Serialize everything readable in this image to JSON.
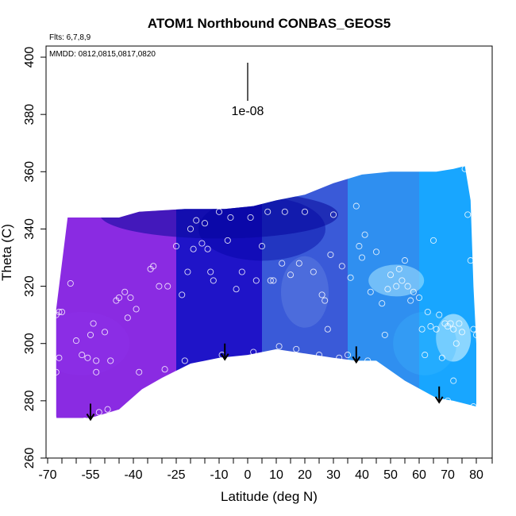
{
  "chart_data": {
    "type": "heatmap",
    "title": "ATOM1 Northbound CONBAS_GEOS5",
    "flights_note": "Flts: 6,7,8,9",
    "dates_note": "MMDD: 0812,0815,0817,0820",
    "xlabel": "Latitude (deg N)",
    "ylabel": "Theta (C)",
    "xlim": [
      -70,
      80
    ],
    "ylim": [
      260,
      400
    ],
    "x_ticks": [
      -70,
      -55,
      -40,
      -25,
      -10,
      0,
      10,
      20,
      30,
      40,
      50,
      60,
      70,
      80
    ],
    "x_tick_labels": [
      "-70",
      "-55",
      "-40",
      "-25",
      "-10",
      "0",
      "10",
      "20",
      "30",
      "40",
      "50",
      "60",
      "70",
      "80"
    ],
    "x_minor_ticks": [
      -65,
      -60,
      -50,
      -45,
      -35,
      -30,
      -20,
      -15,
      -5,
      5,
      15,
      25,
      35,
      45,
      55,
      65,
      75
    ],
    "y_ticks": [
      260,
      280,
      300,
      320,
      340,
      360,
      380,
      400
    ],
    "y_tick_labels": [
      "260",
      "280",
      "300",
      "320",
      "340",
      "360",
      "380",
      "400"
    ],
    "scale_bar_label": "1e-08",
    "grid": false,
    "field_top": [
      [
        -67,
        312
      ],
      [
        -63,
        344
      ],
      [
        -45,
        344
      ],
      [
        -38,
        346
      ],
      [
        -22,
        347
      ],
      [
        -8,
        347
      ],
      [
        2,
        348
      ],
      [
        10,
        350
      ],
      [
        20,
        352
      ],
      [
        30,
        356
      ],
      [
        40,
        359
      ],
      [
        50,
        360
      ],
      [
        60,
        360
      ],
      [
        66,
        360
      ],
      [
        72,
        361
      ],
      [
        76,
        362
      ],
      [
        78,
        350
      ],
      [
        79,
        320
      ],
      [
        80,
        300
      ]
    ],
    "field_bottom": [
      [
        80,
        278
      ],
      [
        72,
        280
      ],
      [
        66,
        281
      ],
      [
        55,
        287
      ],
      [
        45,
        294
      ],
      [
        38,
        294
      ],
      [
        30,
        295
      ],
      [
        20,
        296.5
      ],
      [
        10,
        298
      ],
      [
        0,
        296
      ],
      [
        -10,
        295
      ],
      [
        -20,
        293
      ],
      [
        -30,
        288
      ],
      [
        -37,
        284
      ],
      [
        -45,
        277
      ],
      [
        -55,
        274
      ],
      [
        -67,
        274
      ]
    ],
    "field_color_regions": [
      {
        "name": "southern-high-latitudes",
        "x": [
          -70,
          -25
        ],
        "color": "#8a2be2"
      },
      {
        "name": "southern-subtropics",
        "x": [
          -25,
          5
        ],
        "color": "#1f14c8"
      },
      {
        "name": "tropics",
        "x": [
          5,
          35
        ],
        "color": "#3a5ad8"
      },
      {
        "name": "northern-midlatitudes",
        "x": [
          35,
          60
        ],
        "color": "#2f8ff0"
      },
      {
        "name": "northern-high-latitudes",
        "x": [
          60,
          80
        ],
        "color": "#18a6ff"
      }
    ],
    "samples": [
      [
        -68,
        274
      ],
      [
        -67,
        290
      ],
      [
        -66,
        295
      ],
      [
        -67,
        310
      ],
      [
        -66,
        311
      ],
      [
        -65,
        311
      ],
      [
        -62,
        321
      ],
      [
        -60,
        301
      ],
      [
        -58,
        296
      ],
      [
        -57,
        273
      ],
      [
        -56,
        295
      ],
      [
        -55,
        303
      ],
      [
        -54,
        307
      ],
      [
        -53,
        290
      ],
      [
        -53,
        294
      ],
      [
        -52,
        276
      ],
      [
        -50,
        304
      ],
      [
        -49,
        277
      ],
      [
        -48,
        294
      ],
      [
        -46,
        315
      ],
      [
        -45,
        316
      ],
      [
        -43,
        318
      ],
      [
        -42,
        309
      ],
      [
        -41,
        316
      ],
      [
        -39,
        312
      ],
      [
        -38,
        290
      ],
      [
        -34,
        326
      ],
      [
        -33,
        327
      ],
      [
        -31,
        320
      ],
      [
        -29,
        291
      ],
      [
        -28,
        320
      ],
      [
        -25,
        334
      ],
      [
        -23,
        317
      ],
      [
        -22,
        294
      ],
      [
        -21,
        325
      ],
      [
        -20,
        340
      ],
      [
        -19,
        333
      ],
      [
        -18,
        343
      ],
      [
        -16,
        335
      ],
      [
        -15,
        342
      ],
      [
        -14,
        333
      ],
      [
        -13,
        325
      ],
      [
        -12,
        322
      ],
      [
        -10,
        346
      ],
      [
        -9,
        296
      ],
      [
        -7,
        336
      ],
      [
        -6,
        344
      ],
      [
        -4,
        319
      ],
      [
        -2,
        325
      ],
      [
        1,
        344
      ],
      [
        2,
        297
      ],
      [
        3,
        322
      ],
      [
        5,
        334
      ],
      [
        7,
        346
      ],
      [
        8,
        322
      ],
      [
        9,
        322
      ],
      [
        11,
        299
      ],
      [
        12,
        328
      ],
      [
        13,
        346
      ],
      [
        15,
        324
      ],
      [
        17,
        298
      ],
      [
        18,
        328
      ],
      [
        20,
        346
      ],
      [
        23,
        325
      ],
      [
        25,
        296
      ],
      [
        26,
        317
      ],
      [
        27,
        315
      ],
      [
        28,
        305
      ],
      [
        29,
        331
      ],
      [
        30,
        345
      ],
      [
        32,
        295
      ],
      [
        33,
        327
      ],
      [
        35,
        296
      ],
      [
        36,
        323
      ],
      [
        38,
        348
      ],
      [
        39,
        334
      ],
      [
        40,
        330
      ],
      [
        41,
        338
      ],
      [
        42,
        294
      ],
      [
        43,
        318
      ],
      [
        45,
        332
      ],
      [
        47,
        314
      ],
      [
        48,
        303
      ],
      [
        49,
        319
      ],
      [
        50,
        324
      ],
      [
        52,
        320
      ],
      [
        53,
        326
      ],
      [
        54,
        322
      ],
      [
        55,
        329
      ],
      [
        56,
        320
      ],
      [
        57,
        315
      ],
      [
        58,
        318
      ],
      [
        60,
        316
      ],
      [
        61,
        305
      ],
      [
        62,
        296
      ],
      [
        63,
        311
      ],
      [
        64,
        306
      ],
      [
        65,
        336
      ],
      [
        66,
        305
      ],
      [
        67,
        310
      ],
      [
        68,
        295
      ],
      [
        69,
        307
      ],
      [
        70,
        280
      ],
      [
        70,
        306
      ],
      [
        71,
        307
      ],
      [
        72,
        287
      ],
      [
        72,
        305
      ],
      [
        73,
        300
      ],
      [
        74,
        307
      ],
      [
        75,
        304
      ],
      [
        76,
        361
      ],
      [
        77,
        345
      ],
      [
        78,
        329
      ],
      [
        79,
        278
      ],
      [
        79,
        305
      ],
      [
        80,
        303
      ]
    ],
    "arrows": [
      [
        -55,
        279
      ],
      [
        -8,
        300
      ],
      [
        38,
        299
      ],
      [
        67,
        285
      ]
    ]
  }
}
